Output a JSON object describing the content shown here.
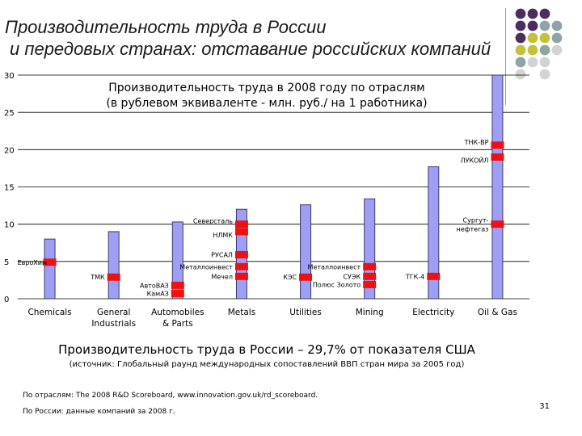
{
  "slide": {
    "title_line1": "Производительность труда в России",
    "title_line2": "и передовых странах: отставание российских компаний",
    "summary": "Производительность труда в России – 29,7% от показателя США",
    "source_note": "(источник: Глобальный раунд международных сопоставлений ВВП стран мира за 2005 год)",
    "source_line1": "По отраслям: The 2008 R&D Scoreboard, www.innovation.gov.uk/rd_scoreboard.",
    "source_line2": "По России: данные компаний за 2008 г.",
    "page_number": "31"
  },
  "colors": {
    "bar_fill": "#9e9ef4",
    "bar_stroke": "#3b3b6e",
    "marker": "#ee1111",
    "dot_purple": "#4b2d5f",
    "dot_olive": "#c5c23a",
    "dot_teal": "#8ea4a6",
    "dot_gray": "#d3d3d3"
  },
  "chart_data": {
    "type": "bar",
    "title_line1": "Производительность труда в 2008 году по отраслям",
    "title_line2": "(в рублевом эквиваленте - млн. руб./ на 1 работника)",
    "categories": [
      "Chemicals",
      "General\nIndustrials",
      "Automobiles\n& Parts",
      "Metals",
      "Utilities",
      "Mining",
      "Electricity",
      "Oil & Gas"
    ],
    "values": [
      8,
      9,
      10.3,
      12,
      12.6,
      13.4,
      17.7,
      30
    ],
    "yticks": [
      0,
      5,
      10,
      15,
      20,
      25,
      30
    ],
    "ylim": [
      0,
      30
    ],
    "grid": true,
    "companies": [
      {
        "name": "ЕвроХим",
        "category": 0,
        "value": 4.9
      },
      {
        "name": "ТМК",
        "category": 1,
        "value": 2.9
      },
      {
        "name": "АвтоВАЗ",
        "category": 2,
        "value": 1.8
      },
      {
        "name": "КамАЗ",
        "category": 2,
        "value": 0.7
      },
      {
        "name": "Северсталь",
        "category": 3,
        "value": 10.0
      },
      {
        "name": "НЛМК",
        "category": 3,
        "value": 9.0
      },
      {
        "name": "РУСАЛ",
        "category": 3,
        "value": 5.9
      },
      {
        "name": "Металлоинвест",
        "category": 3,
        "value": 4.3
      },
      {
        "name": "Мечел",
        "category": 3,
        "value": 3.0
      },
      {
        "name": "КЭС",
        "category": 4,
        "value": 2.9
      },
      {
        "name": "Металлоинвест",
        "category": 5,
        "value": 4.3
      },
      {
        "name": "СУЭК",
        "category": 5,
        "value": 3.0
      },
      {
        "name": "Полюс Золото",
        "category": 5,
        "value": 1.9
      },
      {
        "name": "ТГК-4",
        "category": 6,
        "value": 3.0
      },
      {
        "name": "Сургут-\nнефтегаз",
        "category": 7,
        "value": 10.0
      },
      {
        "name": "ТНК-BP",
        "category": 7,
        "value": 20.6
      },
      {
        "name": "ЛУКОЙЛ",
        "category": 7,
        "value": 19.0
      }
    ]
  }
}
